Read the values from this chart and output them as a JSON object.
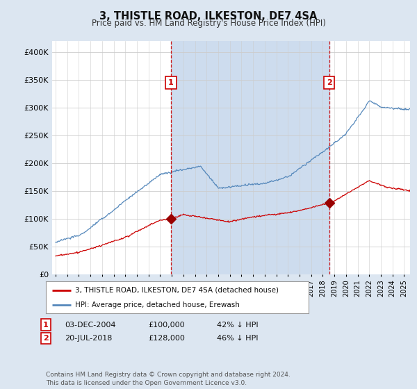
{
  "title": "3, THISTLE ROAD, ILKESTON, DE7 4SA",
  "subtitle": "Price paid vs. HM Land Registry's House Price Index (HPI)",
  "background_color": "#dce6f1",
  "plot_bg_color": "#ffffff",
  "fill_between_color": "#cddcee",
  "ylim": [
    0,
    420000
  ],
  "yticks": [
    0,
    50000,
    100000,
    150000,
    200000,
    250000,
    300000,
    350000,
    400000
  ],
  "ytick_labels": [
    "£0",
    "£50K",
    "£100K",
    "£150K",
    "£200K",
    "£250K",
    "£300K",
    "£350K",
    "£400K"
  ],
  "sale1": {
    "date_num": 2004.92,
    "price": 100000,
    "label": "1"
  },
  "sale2": {
    "date_num": 2018.55,
    "price": 128000,
    "label": "2"
  },
  "vline_color": "#cc0000",
  "sale_marker_color": "#990000",
  "hpi_line_color": "#5588bb",
  "price_line_color": "#cc0000",
  "legend_label_price": "3, THISTLE ROAD, ILKESTON, DE7 4SA (detached house)",
  "legend_label_hpi": "HPI: Average price, detached house, Erewash",
  "footer": "Contains HM Land Registry data © Crown copyright and database right 2024.\nThis data is licensed under the Open Government Licence v3.0.",
  "xmin": 1995.0,
  "xmax": 2025.5
}
